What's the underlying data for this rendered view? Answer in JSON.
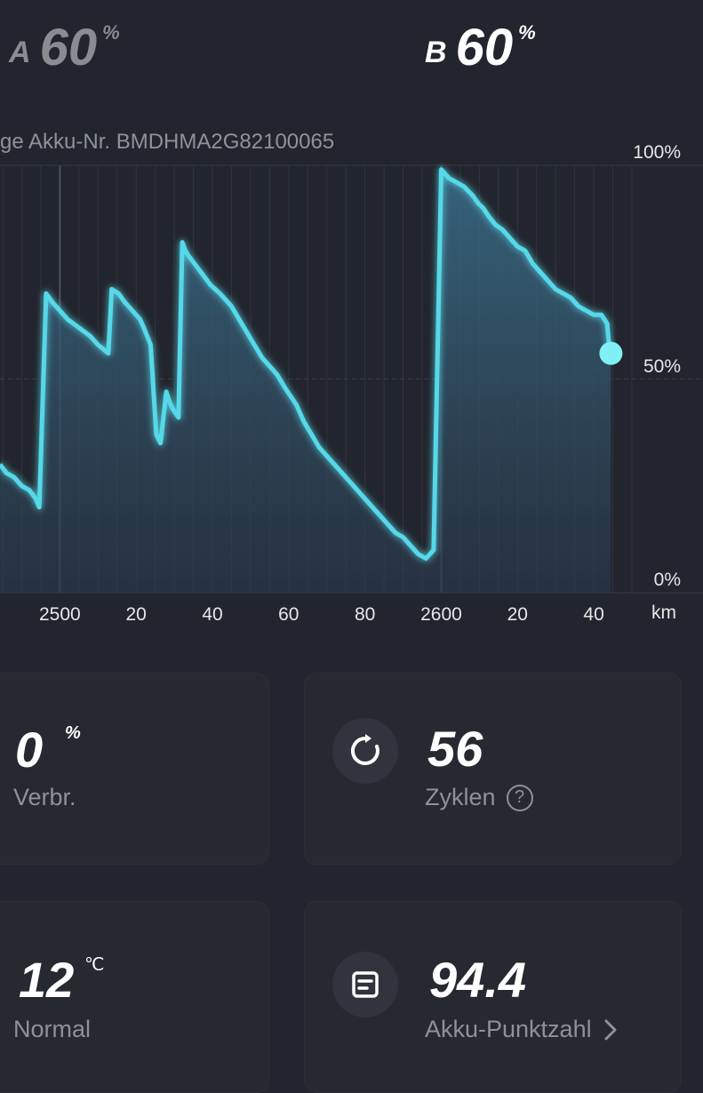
{
  "battery_tabs": [
    {
      "letter": "A",
      "value": "60",
      "unit": "%",
      "active": false
    },
    {
      "letter": "B",
      "value": "60",
      "unit": "%",
      "active": true
    }
  ],
  "chart": {
    "serial_text": "ge Akku-Nr. BMDHMA2G82100065",
    "x_unit": "km"
  },
  "chart_data": {
    "type": "area",
    "xlabel": "",
    "ylabel": "",
    "x_tick_labels": [
      "2500",
      "20",
      "40",
      "60",
      "80",
      "2600",
      "20",
      "40"
    ],
    "x_tick_values": [
      2500,
      2520,
      2540,
      2560,
      2580,
      2600,
      2620,
      2640
    ],
    "y_tick_labels": [
      "100%",
      "50%",
      "0%"
    ],
    "y_tick_values": [
      100,
      50,
      0
    ],
    "xlim": [
      2484.3,
      2650
    ],
    "ylim": [
      0,
      100
    ],
    "grid": true,
    "series": [
      {
        "x": [
          2484.3,
          2486,
          2488,
          2490,
          2492,
          2493.7,
          2494.6,
          2496.4,
          2498,
          2500,
          2502,
          2505,
          2508,
          2510,
          2512.7,
          2513.6,
          2515.4,
          2517,
          2519,
          2521,
          2522,
          2523.8,
          2524.5,
          2525.3,
          2526.4,
          2527.9,
          2528.6,
          2529.6,
          2531.1,
          2532.1,
          2532.9,
          2533.6,
          2535.3,
          2537,
          2539.5,
          2542,
          2545,
          2547,
          2549,
          2551,
          2553,
          2555,
          2557,
          2559,
          2562,
          2564,
          2566,
          2568,
          2570,
          2572,
          2574,
          2576,
          2578,
          2580,
          2582,
          2584,
          2586,
          2588,
          2590,
          2592,
          2594,
          2596,
          2598,
          2600,
          2602,
          2604,
          2606,
          2608.2,
          2609.8,
          2611,
          2612.5,
          2614.3,
          2616,
          2618,
          2620,
          2622,
          2624,
          2626,
          2628,
          2630,
          2632,
          2634,
          2636,
          2638,
          2640,
          2642,
          2643.5,
          2644,
          2644.5
        ],
        "y": [
          30,
          28,
          27,
          25,
          24,
          22,
          20,
          70,
          68,
          66,
          64,
          62,
          60,
          58,
          56,
          71,
          70,
          68,
          66,
          64,
          62,
          58,
          48,
          37,
          35,
          47,
          45,
          43,
          41,
          82,
          80,
          79,
          77,
          75,
          72,
          70,
          67,
          64,
          61,
          58,
          55,
          53,
          51,
          48,
          44,
          40,
          37,
          34,
          32,
          30,
          28,
          26,
          24,
          22,
          20,
          18,
          16,
          14,
          13,
          11,
          9,
          8,
          10,
          99,
          97,
          96,
          95,
          93,
          91,
          90,
          88,
          86,
          85,
          83,
          81,
          80,
          77,
          75,
          73,
          71,
          70,
          69,
          67,
          66,
          65,
          65,
          63,
          58,
          56
        ],
        "color": "#56d8e8"
      }
    ],
    "current_point": {
      "x": 2644.5,
      "y": 56
    }
  },
  "cards": {
    "consumption": {
      "value": "0",
      "unit": "%",
      "label": "Verbr."
    },
    "cycles": {
      "value": "56",
      "label": "Zyklen",
      "help": "?",
      "icon": "refresh-icon"
    },
    "temperature": {
      "value": "12",
      "unit": "℃",
      "label": "Normal"
    },
    "score": {
      "value": "94.4",
      "label": "Akku-Punktzahl",
      "icon": "document-icon",
      "chevron": "chevron-right-icon"
    }
  },
  "colors": {
    "background": "#22252d",
    "accent": "#56d8e8",
    "card": "#262930"
  }
}
